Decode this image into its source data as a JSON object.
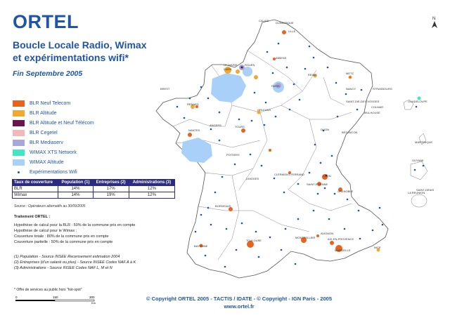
{
  "header": {
    "brand": "ORTEL",
    "title_line1": "Boucle Locale Radio, Wimax",
    "title_line2": "et expérimentations wifi*",
    "date": "Fin Septembre 2005"
  },
  "legend": [
    {
      "label": "BLR Neuf Telecom",
      "color": "#e8641e"
    },
    {
      "label": "BLR Altitude",
      "color": "#f0a830"
    },
    {
      "label": "BLR Altitude et Neuf Télécom",
      "color": "#6b1452"
    },
    {
      "label": "BLR Cegetel",
      "color": "#f4b8b8"
    },
    {
      "label": "BLR Mediaserv",
      "color": "#a8a8d8"
    },
    {
      "label": "WIMAX XTS Network",
      "color": "#3ee8c0"
    },
    {
      "label": " WIMAX  Altitude",
      "color": "#a8d0f8"
    },
    {
      "label": "Expérimentations Wifi",
      "icon": "dot-icon",
      "color": "#1f55a8"
    }
  ],
  "coverage_table": {
    "headers": [
      "Taux de couverture",
      "Population (1)",
      "Entreprises (2)",
      "Administrations (3)"
    ],
    "rows": [
      [
        "BLR",
        "14%",
        "17%",
        "12%"
      ],
      [
        "Wimax",
        "14%",
        "19%",
        "12%"
      ]
    ]
  },
  "source": "Source : Opérateurs alternatifs au 30/09/2005",
  "notes": {
    "title": "Traitement ORTEL :",
    "lines": [
      "Hypothèse de calcul pour la BLR : 50% de la commune pris en compte",
      "Hypothèse de calcul pour le Wimax :",
      "Couverture totale : 80% de la commune pris en compte",
      "Couverture partielle : 50% de la commune pris en compte"
    ]
  },
  "footnotes": [
    "(1) Population - Source INSEE Recensement estimation 2004",
    "(2) Entreprises (d'un salarié ou plus) - Source INSEE Codes NAF A à K",
    "(3) Administrations - Source INSEE Codes NAF L, M et N"
  ],
  "hotspot_note": "* Offre de services au public hors \"hot-spot\"",
  "scale": {
    "ticks": [
      "0",
      "150",
      "300"
    ],
    "unit": "Km"
  },
  "copyright": "© Copyright ORTEL 2005 - TACTIS / IDATE - © Copyright - IGN Paris - 2005",
  "website": "www.ortel.fr",
  "north_label": "N",
  "cities": {
    "calais": "CALAIS",
    "dunkerque": "DUNKERQUE",
    "lille": "LILLE",
    "amiens": "AMIENS",
    "rouen": "ROUEN",
    "le_havre": "LE HAVRE",
    "caen": "CAEN",
    "paris": "PARIS",
    "reims": "REIMS",
    "metz": "METZ",
    "nancy": "NANCY",
    "strasbourg": "STRASBOURG",
    "brest": "BREST",
    "rennes": "RENNES",
    "nantes": "NANTES",
    "angers": "ANGERS",
    "tours": "TOURS",
    "orleans": "ORLEANS",
    "dijon": "DIJON",
    "besancon": "BESANCON",
    "mulhouse": "MULHOUSE",
    "colmar": "COLMAR",
    "st_die": "SAINT-DIE-DES-VOSGES",
    "poitiers": "POITIERS",
    "limoges": "LIMOGES",
    "clermont": "CLERMONT-FERRAND",
    "lyon": "LYON",
    "st_etienne": "SAINT-ETIENNE",
    "grenoble": "GRENOBLE",
    "bordeaux": "BORDEAUX",
    "toulouse": "TOULOUSE",
    "montpellier": "MONTPELLIER",
    "marseille": "MARSEILLE",
    "aix": "AIX-EN-PROVENCE",
    "avignon": "AVIGNON",
    "nice": "NICE",
    "bayonne": "BAYONNE",
    "guadeloupe": "GUADELOUPE",
    "martinique": "MARTINIQUE",
    "guyane": "GUYANE",
    "reunion": "LA REUNION",
    "saint_denis": "SAINT-DENIS"
  }
}
